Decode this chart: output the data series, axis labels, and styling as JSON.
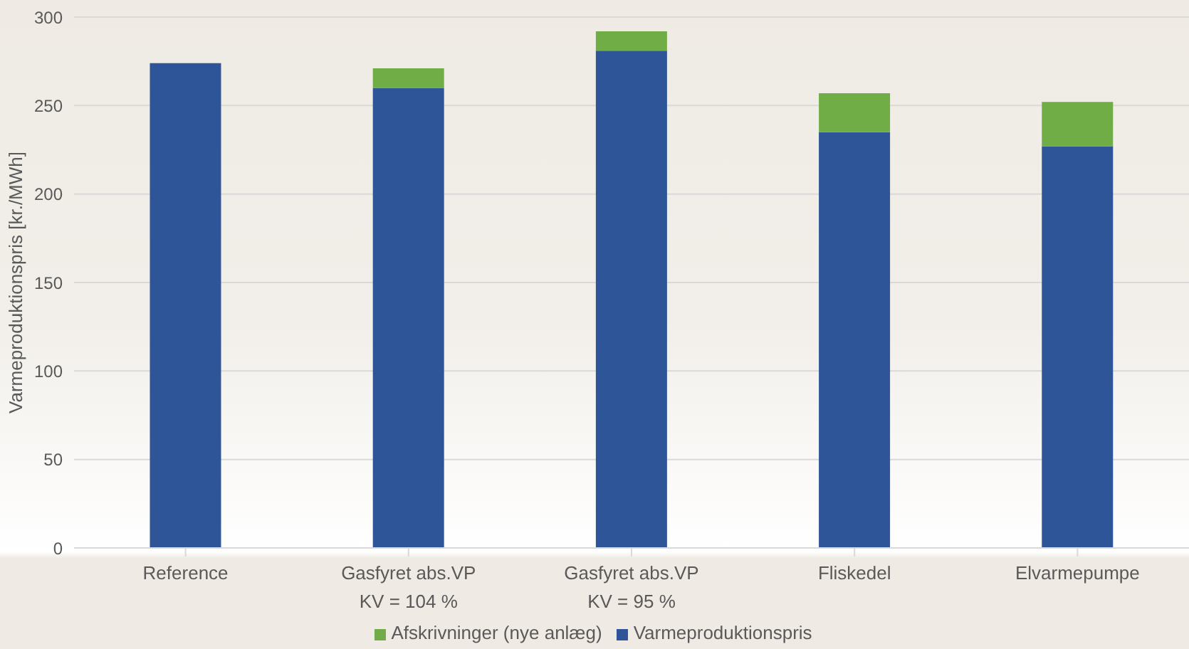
{
  "chart_data": {
    "type": "bar",
    "stacked": true,
    "ylabel": "Varmeproduktionspris [kr./MWh]",
    "categories": [
      "Reference",
      "Gasfyret abs.VP\nKV = 104 %",
      "Gasfyret abs.VP\nKV = 95 %",
      "Fliskedel",
      "Elvarmepumpe"
    ],
    "series": [
      {
        "name": "Varmeproduktionspris",
        "color": "#2e5597",
        "values": [
          274,
          260,
          281,
          235,
          227
        ]
      },
      {
        "name": "Afskrivninger (nye anlæg)",
        "color": "#70ad47",
        "values": [
          null,
          11,
          11,
          22,
          25
        ]
      }
    ],
    "ylim": [
      0,
      300
    ],
    "yticks": [
      0,
      50,
      100,
      150,
      200,
      250,
      300
    ],
    "grid": "y",
    "legend": "bottom"
  }
}
